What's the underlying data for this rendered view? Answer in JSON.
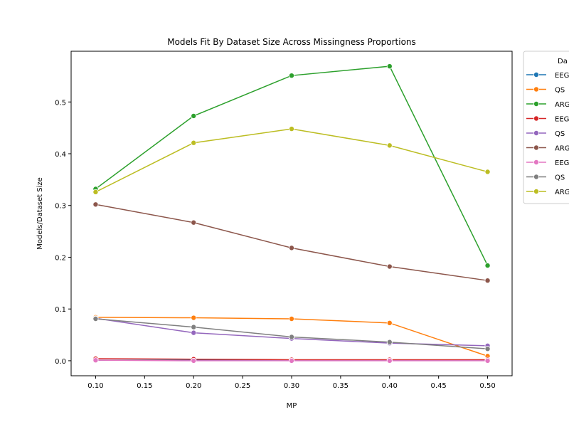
{
  "chart_data": {
    "type": "line",
    "title": "Models Fit By Dataset Size Across Missingness Proportions",
    "xlabel": "MP",
    "ylabel": "Models/Dataset Size",
    "x": [
      0.1,
      0.2,
      0.3,
      0.4,
      0.5
    ],
    "xlim": [
      0.075,
      0.525
    ],
    "ylim": [
      -0.029,
      0.598
    ],
    "x_ticks": [
      "0.10",
      "0.15",
      "0.20",
      "0.25",
      "0.30",
      "0.35",
      "0.40",
      "0.45",
      "0.50"
    ],
    "y_ticks": [
      "0.0",
      "0.1",
      "0.2",
      "0.3",
      "0.4",
      "0.5"
    ],
    "grid": false,
    "legend_title": "Da",
    "legend_placement": "outside-upper-right",
    "series": [
      {
        "name": "EEG",
        "color": "#1f77b4",
        "values": [
          0.001,
          0.001,
          0.001,
          0.001,
          0.001
        ]
      },
      {
        "name": "QS",
        "color": "#ff7f0e",
        "values": [
          0.084,
          0.083,
          0.081,
          0.073,
          0.009
        ]
      },
      {
        "name": "ARG",
        "color": "#2ca02c",
        "values": [
          0.332,
          0.473,
          0.551,
          0.569,
          0.184
        ]
      },
      {
        "name": "EEG",
        "color": "#d62728",
        "values": [
          0.004,
          0.003,
          0.002,
          0.002,
          0.002
        ]
      },
      {
        "name": "QS",
        "color": "#9467bd",
        "values": [
          0.082,
          0.054,
          0.043,
          0.034,
          0.029
        ]
      },
      {
        "name": "ARG",
        "color": "#8c564b",
        "values": [
          0.302,
          0.267,
          0.218,
          0.182,
          0.155
        ]
      },
      {
        "name": "EEG",
        "color": "#e377c2",
        "values": [
          0.001,
          0.0,
          0.0,
          0.0,
          0.0
        ]
      },
      {
        "name": "QS",
        "color": "#7f7f7f",
        "values": [
          0.081,
          0.065,
          0.046,
          0.036,
          0.023
        ]
      },
      {
        "name": "ARG",
        "color": "#bcbd22",
        "values": [
          0.326,
          0.421,
          0.448,
          0.416,
          0.365
        ]
      }
    ]
  }
}
